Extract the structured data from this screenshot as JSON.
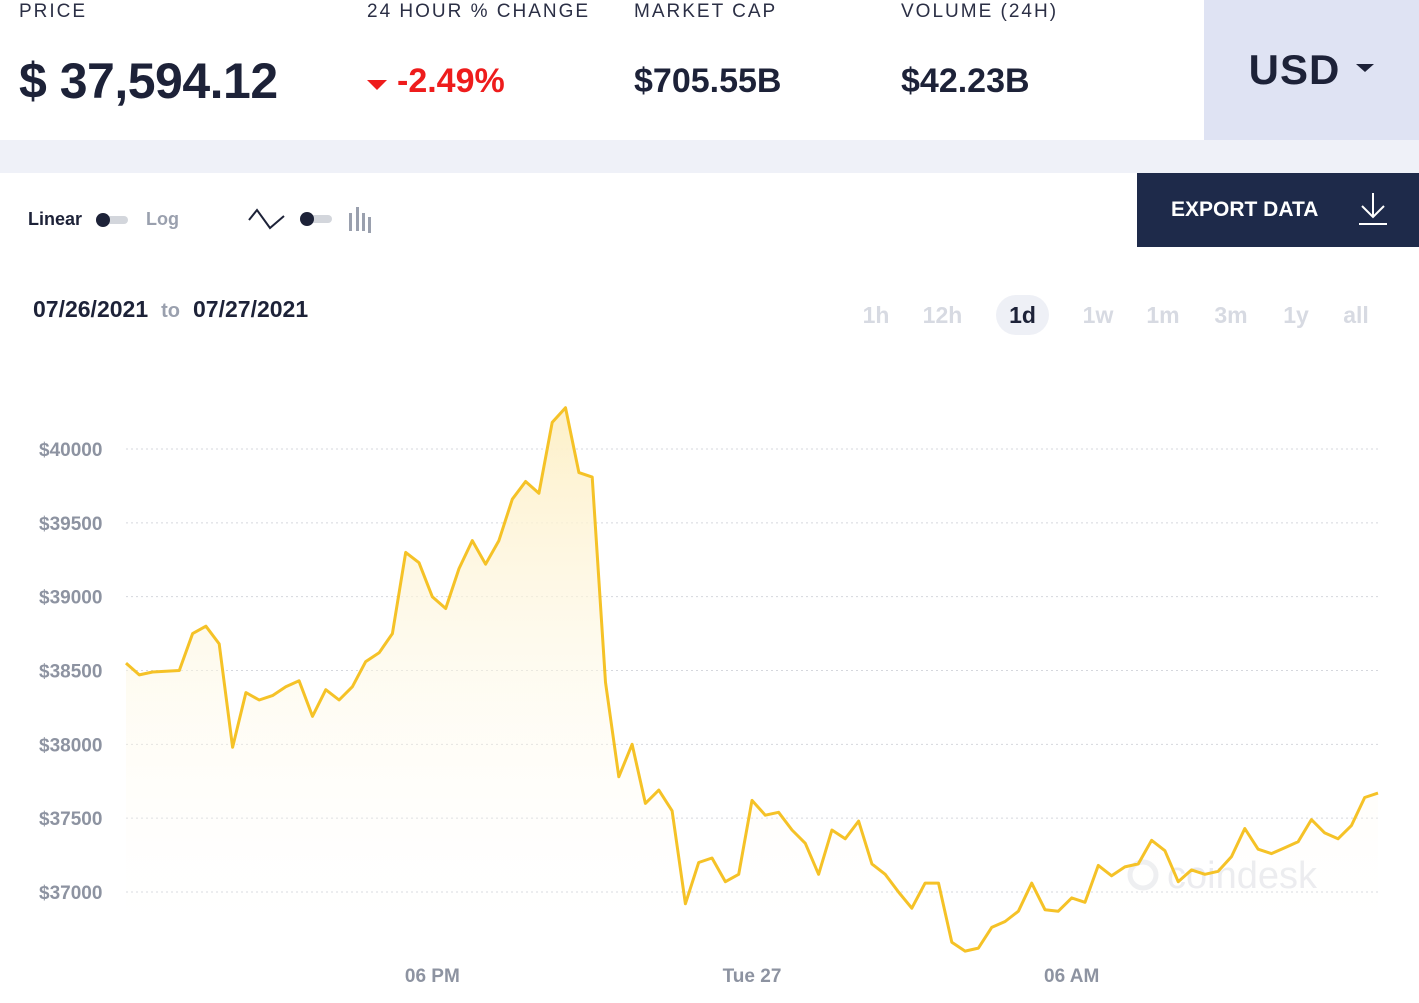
{
  "stats": {
    "price_label": "PRICE",
    "price_value": "$ 37,594.12",
    "change_label": "24 HOUR % CHANGE",
    "change_value": "-2.49%",
    "market_cap_label": "MARKET CAP",
    "market_cap_value": "$705.55B",
    "volume_label": "VOLUME (24H)",
    "volume_value": "$42.23B"
  },
  "currency": {
    "selected": "USD"
  },
  "controls": {
    "scale_on": "Linear",
    "scale_off": "Log",
    "chart_type_line_icon": "line-chart-icon",
    "chart_type_bar_icon": "bar-chart-icon",
    "export_label": "EXPORT DATA"
  },
  "date_range": {
    "from": "07/26/2021",
    "to_word": "to",
    "to": "07/27/2021"
  },
  "range_tabs": [
    "1h",
    "12h",
    "1d",
    "1w",
    "1m",
    "3m",
    "1y",
    "all"
  ],
  "active_range": "1d",
  "watermark": "coindesk",
  "colors": {
    "line": "#f5c227",
    "fill_top": "#fdf0c8",
    "negative": "#ee1c1c",
    "navy": "#1e2a4a",
    "currency_bg": "#dfe3f3"
  },
  "chart_data": {
    "type": "area",
    "title": "",
    "xlabel": "",
    "ylabel": "",
    "ylim": [
      36500,
      40300
    ],
    "grid": true,
    "yticks": [
      {
        "value": 40000,
        "label": "$40000"
      },
      {
        "value": 39500,
        "label": "$39500"
      },
      {
        "value": 39000,
        "label": "$39000"
      },
      {
        "value": 38500,
        "label": "$38500"
      },
      {
        "value": 38000,
        "label": "$38000"
      },
      {
        "value": 37500,
        "label": "$37500"
      },
      {
        "value": 37000,
        "label": "$37000"
      }
    ],
    "xticks": [
      {
        "index": 23,
        "label": "06 PM"
      },
      {
        "index": 47,
        "label": "Tue 27"
      },
      {
        "index": 71,
        "label": "06 AM"
      }
    ],
    "series": [
      {
        "values": [
          38550,
          38470,
          38490,
          38495,
          38500,
          38750,
          38800,
          38680,
          37980,
          38350,
          38300,
          38330,
          38390,
          38430,
          38190,
          38370,
          38300,
          38390,
          38560,
          38620,
          38750,
          39300,
          39230,
          39000,
          38920,
          39190,
          39380,
          39220,
          39380,
          39660,
          39780,
          39700,
          40180,
          40280,
          39840,
          39810,
          38420,
          37780,
          38000,
          37600,
          37690,
          37550,
          36920,
          37200,
          37230,
          37070,
          37120,
          37620,
          37520,
          37540,
          37420,
          37330,
          37120,
          37420,
          37360,
          37480,
          37190,
          37120,
          37000,
          36890,
          37060,
          37060,
          36660,
          36600,
          36620,
          36760,
          36800,
          36870,
          37060,
          36880,
          36870,
          36960,
          36930,
          37180,
          37110,
          37170,
          37190,
          37350,
          37280,
          37070,
          37150,
          37120,
          37140,
          37240,
          37430,
          37290,
          37260,
          37300,
          37340,
          37490,
          37400,
          37360,
          37450,
          37640,
          37670
        ]
      }
    ]
  }
}
